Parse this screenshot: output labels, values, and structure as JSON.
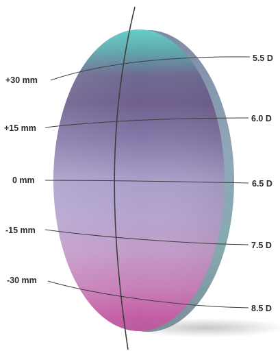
{
  "diagram": {
    "heights": [
      "+30 mm",
      "+15 mm",
      "0 mm",
      "-15 mm",
      "-30 mm"
    ],
    "powers": [
      "5.5 D",
      "6.0 D",
      "6.5 D",
      "7.5 D",
      "8.5 D"
    ],
    "colors": {
      "top": "#63c9c3",
      "upper": "#6e5f8e",
      "middle": "#ab9ec9",
      "lower": "#c99ac6",
      "bottom": "#c65ca3",
      "edge": "#7fa3a8",
      "line": "#3e3e3e",
      "text": "#2b2b2b"
    }
  }
}
